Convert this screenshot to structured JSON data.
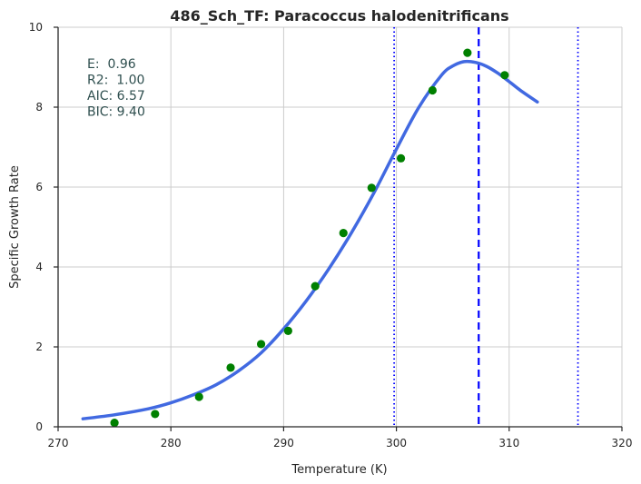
{
  "chart_data": {
    "type": "scatter",
    "title": "486_Sch_TF: Paracoccus halodenitrificans",
    "xlabel": "Temperature (K)",
    "ylabel": "Specific Growth Rate",
    "xlim": [
      270,
      320
    ],
    "ylim": [
      0,
      10
    ],
    "xticks": [
      "270",
      "280",
      "290",
      "300",
      "310",
      "320"
    ],
    "yticks": [
      "0",
      "2",
      "4",
      "6",
      "8",
      "10"
    ],
    "grid": true,
    "annotations": [
      "E:  0.96",
      "R2:  1.00",
      "AIC: 6.57",
      "BIC: 9.40"
    ],
    "points": {
      "color": "#008000",
      "x": [
        275.0,
        278.6,
        282.5,
        285.3,
        288.0,
        290.4,
        292.8,
        295.3,
        297.8,
        300.4,
        303.2,
        306.3,
        309.6
      ],
      "y": [
        0.1,
        0.32,
        0.75,
        1.48,
        2.07,
        2.4,
        3.52,
        4.85,
        5.98,
        6.72,
        8.42,
        9.36,
        8.8
      ]
    },
    "fit_curve": {
      "color": "#4169e1",
      "x": [
        272.2,
        275,
        278,
        280,
        282,
        284,
        286,
        288,
        290,
        292,
        294,
        296,
        298,
        300,
        302,
        304,
        305,
        306,
        307,
        308,
        309,
        310,
        311,
        312.5
      ],
      "y": [
        0.2,
        0.3,
        0.45,
        0.6,
        0.8,
        1.05,
        1.4,
        1.85,
        2.45,
        3.15,
        3.95,
        4.85,
        5.85,
        6.95,
        8.0,
        8.8,
        9.03,
        9.14,
        9.12,
        9.02,
        8.85,
        8.64,
        8.42,
        8.13
      ]
    },
    "vlines": [
      {
        "x": 299.8,
        "style": "dotted",
        "color": "#0000ff"
      },
      {
        "x": 307.3,
        "style": "dashed",
        "color": "#0000ff"
      },
      {
        "x": 316.1,
        "style": "dotted",
        "color": "#0000ff"
      }
    ]
  }
}
